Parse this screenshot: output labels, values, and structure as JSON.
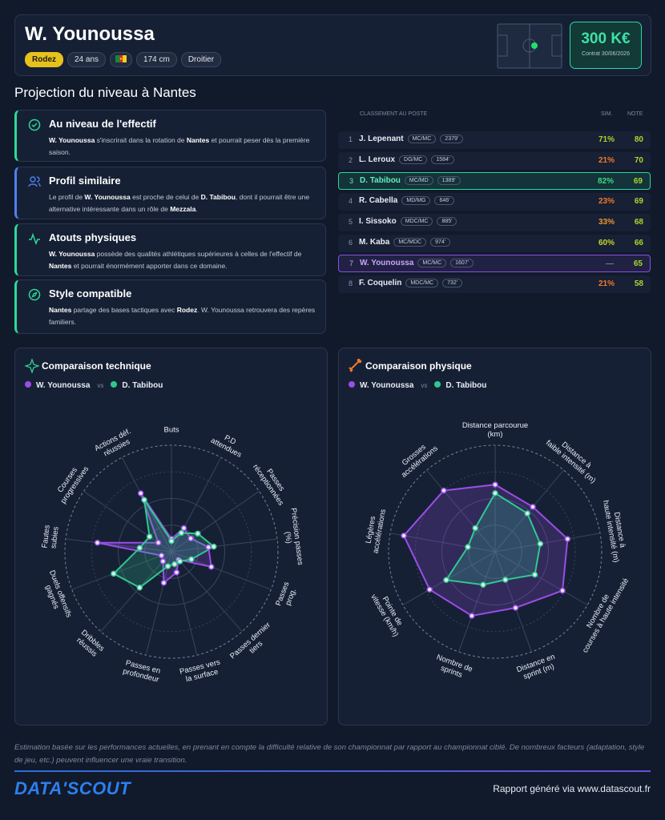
{
  "header": {
    "name": "W. Younoussa",
    "club": "Rodez",
    "age": "24 ans",
    "height": "174 cm",
    "foot": "Droitier",
    "value": "300 K€",
    "contract": "Contrat 30/06/2026"
  },
  "section_title": "Projection du niveau à Nantes",
  "cards": [
    {
      "title": "Au niveau de l'effectif",
      "color": "#2bd99a",
      "parts": [
        {
          "b": "W. Younoussa"
        },
        {
          "t": " s'inscrirait dans la rotation de "
        },
        {
          "b": "Nantes"
        },
        {
          "t": " et pourrait peser dès la première saison."
        }
      ]
    },
    {
      "title": "Profil similaire",
      "color": "#4f7ff0",
      "parts": [
        {
          "t": "Le profil de "
        },
        {
          "b": "W. Younoussa"
        },
        {
          "t": " est proche de celui de "
        },
        {
          "b": "D. Tabibou"
        },
        {
          "t": ", dont il pourrait être une alternative intéressante dans un rôle de "
        },
        {
          "b": "Mezzala"
        },
        {
          "t": "."
        }
      ]
    },
    {
      "title": "Atouts physiques",
      "color": "#2bd99a",
      "parts": [
        {
          "b": "W. Younoussa"
        },
        {
          "t": " possède des qualités athlétiques supérieures à celles de l'effectif de "
        },
        {
          "b": "Nantes"
        },
        {
          "t": " et pourrait énormément apporter dans ce domaine."
        }
      ]
    },
    {
      "title": "Style compatible",
      "color": "#2bd99a",
      "parts": [
        {
          "b": "Nantes"
        },
        {
          "t": " partage des bases tactiques avec "
        },
        {
          "b": "Rodez"
        },
        {
          "t": ". W. Younoussa retrouvera des repères familiers."
        }
      ]
    }
  ],
  "ranking": {
    "headers": [
      "CLASSEMENT AU POSTE",
      "SIM.",
      "NOTE"
    ],
    "rows": [
      {
        "rank": "1",
        "name": "J. Lepenant",
        "pos": "MC/MC",
        "minutes": "2379'",
        "sim": "71%",
        "sim_color": "#a8d62e",
        "note": "80"
      },
      {
        "rank": "2",
        "name": "L. Leroux",
        "pos": "DG/MC",
        "minutes": "1584'",
        "sim": "21%",
        "sim_color": "#f07a2a",
        "note": "70"
      },
      {
        "rank": "3",
        "name": "D. Tabibou",
        "pos": "MC/MD",
        "minutes": "1389'",
        "sim": "82%",
        "sim_color": "#3bdc7a",
        "note": "69",
        "highlight": "#2bd99a"
      },
      {
        "rank": "4",
        "name": "R. Cabella",
        "pos": "MD/MG",
        "minutes": "646'",
        "sim": "23%",
        "sim_color": "#f07a2a",
        "note": "69"
      },
      {
        "rank": "5",
        "name": "I. Sissoko",
        "pos": "MDC/MC",
        "minutes": "885'",
        "sim": "33%",
        "sim_color": "#f0962a",
        "note": "68"
      },
      {
        "rank": "6",
        "name": "M. Kaba",
        "pos": "MC/MDC",
        "minutes": "974'",
        "sim": "60%",
        "sim_color": "#c4d62e",
        "note": "66"
      },
      {
        "rank": "7",
        "name": "W. Younoussa",
        "pos": "MC/MC",
        "minutes": "1607'",
        "sim": "—",
        "sim_color": "#7a8296",
        "note": "65",
        "highlight": "#8b4fe0"
      },
      {
        "rank": "8",
        "name": "F. Coquelin",
        "pos": "MDC/MC",
        "minutes": "732'",
        "sim": "21%",
        "sim_color": "#f07a2a",
        "note": "58"
      }
    ]
  },
  "chart_data": [
    {
      "type": "radar",
      "title": "Comparaison technique",
      "legend_separator": "vs",
      "rlim": [
        0,
        100
      ],
      "axes": [
        [
          "Buts"
        ],
        [
          "P.D",
          "attendues"
        ],
        [
          "Passes",
          "réceptionnées"
        ],
        [
          "Précision passes",
          "(%)"
        ],
        [
          "Passes",
          "prog."
        ],
        [
          "Passes dernier",
          "tiers"
        ],
        [
          "Passes vers",
          "la surface"
        ],
        [
          "Passes en",
          "profondeur"
        ],
        [
          "Dribbles",
          "réussis"
        ],
        [
          "Duels offensifs",
          "gagnés"
        ],
        [
          "Fautes",
          "subies"
        ],
        [
          "Courses",
          "progressives"
        ],
        [
          "Actions déf.",
          "réussies"
        ]
      ],
      "series": [
        {
          "name": "W. Younoussa",
          "color": "#9b4de6",
          "values": [
            12,
            25,
            22,
            35,
            40,
            10,
            20,
            30,
            12,
            10,
            70,
            15,
            62
          ]
        },
        {
          "name": "D. Tabibou",
          "color": "#2ec98f",
          "values": [
            10,
            20,
            30,
            40,
            20,
            12,
            12,
            14,
            45,
            58,
            30,
            25,
            55
          ]
        }
      ]
    },
    {
      "type": "radar",
      "title": "Comparaison physique",
      "legend_separator": "vs",
      "rlim": [
        0,
        100
      ],
      "axes": [
        [
          "Distance parcourue",
          "(km)"
        ],
        [
          "Distance à",
          "faible intensité (m)"
        ],
        [
          "Distance à",
          "haute intensité (m)"
        ],
        [
          "Nombre de",
          "courses à haute intensité"
        ],
        [
          "Distance en",
          "sprint (m)"
        ],
        [
          "Nombre de",
          "sprints"
        ],
        [
          "Pointe de",
          "vitesse (km/h)"
        ],
        [
          "Légères",
          "accélérations"
        ],
        [
          "Grosses",
          "accélérations"
        ]
      ],
      "series": [
        {
          "name": "W. Younoussa",
          "color": "#9b4de6",
          "values": [
            63,
            55,
            69,
            73,
            56,
            64,
            71,
            87,
            75
          ]
        },
        {
          "name": "D. Tabibou",
          "color": "#2ec98f",
          "values": [
            55,
            47,
            43,
            43,
            28,
            33,
            53,
            26,
            29
          ]
        }
      ]
    }
  ],
  "footer": {
    "note": "Estimation basée sur les performances actuelles, en prenant en compte la difficulté relative de son championnat par rapport au championnat ciblé. De nombreux facteurs (adaptation, style de jeu, etc.) peuvent influencer une vraie transition.",
    "logo": "DATA'SCOUT",
    "credit": "Rapport généré via www.datascout.fr"
  }
}
